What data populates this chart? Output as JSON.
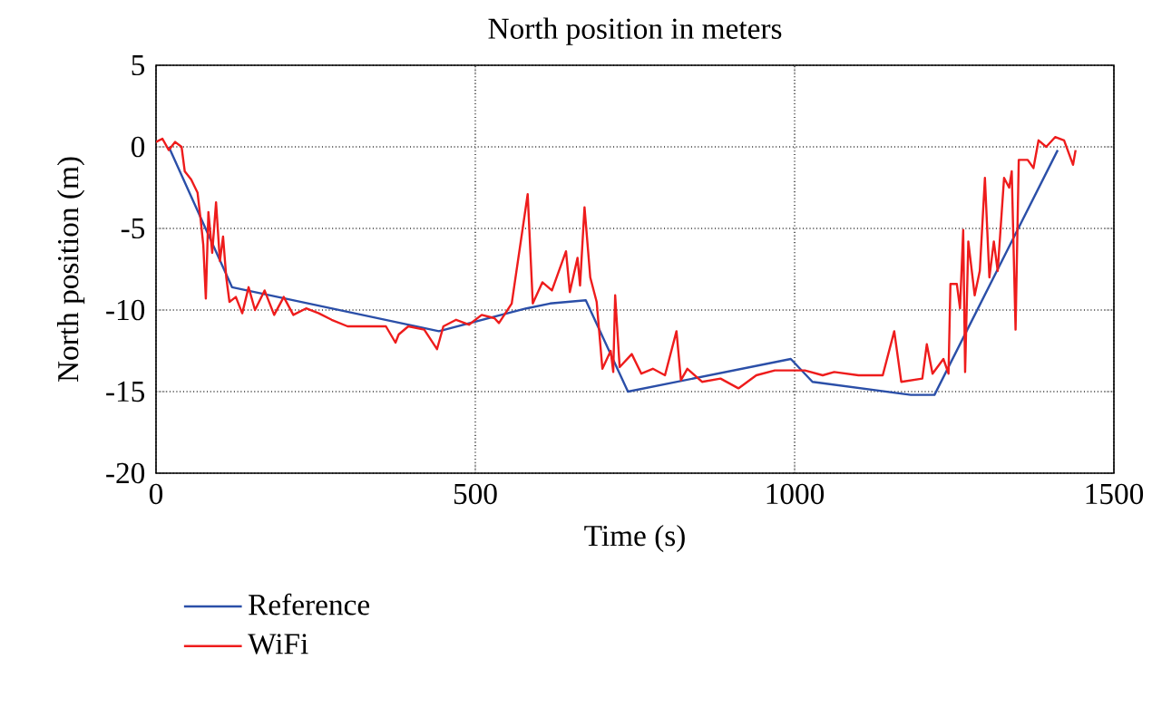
{
  "chart_data": {
    "type": "line",
    "title": "North position in meters",
    "xlabel": "Time (s)",
    "ylabel": "North position (m)",
    "xlim": [
      0,
      1500
    ],
    "ylim": [
      -20,
      5
    ],
    "xticks": [
      0,
      500,
      1000,
      1500
    ],
    "yticks": [
      -20,
      -15,
      -10,
      -5,
      0,
      5
    ],
    "grid": true,
    "legend": "bottom",
    "line_style": "solid",
    "marker": "none",
    "series": [
      {
        "name": "Reference",
        "color": "#2b4fa8",
        "x": [
          20,
          119,
          443,
          580,
          617,
          673,
          739,
          994,
          1028,
          1182,
          1219,
          1412
        ],
        "values": [
          0,
          -8.6,
          -11.3,
          -9.9,
          -9.6,
          -9.4,
          -15,
          -13,
          -14.4,
          -15.2,
          -15.2,
          -0.2
        ]
      },
      {
        "name": "WiFi",
        "color": "#ee1c1c",
        "x": [
          0,
          10,
          20,
          30,
          40,
          45,
          55,
          65,
          70,
          74,
          78,
          82,
          88,
          94,
          100,
          105,
          110,
          115,
          125,
          135,
          145,
          155,
          170,
          185,
          200,
          215,
          235,
          255,
          275,
          300,
          330,
          360,
          375,
          380,
          395,
          420,
          440,
          450,
          470,
          490,
          510,
          530,
          537,
          557,
          582,
          590,
          605,
          620,
          642,
          648,
          660,
          664,
          671,
          680,
          690,
          699,
          712,
          716,
          719,
          726,
          745,
          760,
          778,
          797,
          815,
          822,
          832,
          855,
          884,
          912,
          940,
          969,
          997,
          1016,
          1044,
          1062,
          1100,
          1138,
          1156,
          1167,
          1200,
          1207,
          1216,
          1233,
          1241,
          1244,
          1254,
          1259,
          1264,
          1267,
          1272,
          1282,
          1290,
          1298,
          1305,
          1312,
          1318,
          1328,
          1336,
          1340,
          1346,
          1351,
          1365,
          1374,
          1382,
          1394,
          1408,
          1422,
          1436,
          1440
        ],
        "values": [
          0.3,
          0.5,
          -0.2,
          0.3,
          0,
          -1.5,
          -2,
          -2.8,
          -4.5,
          -6,
          -9.3,
          -4,
          -6.5,
          -3.4,
          -7,
          -5.5,
          -8,
          -9.5,
          -9.2,
          -10.2,
          -8.6,
          -10,
          -8.8,
          -10.3,
          -9.2,
          -10.3,
          -9.9,
          -10.2,
          -10.6,
          -11,
          -11,
          -11,
          -12,
          -11.5,
          -11,
          -11.2,
          -12.4,
          -11,
          -10.6,
          -10.9,
          -10.3,
          -10.5,
          -10.8,
          -9.6,
          -2.9,
          -9.6,
          -8.3,
          -8.8,
          -6.4,
          -8.9,
          -6.8,
          -8.5,
          -3.7,
          -8,
          -9.5,
          -13.6,
          -12.5,
          -13.8,
          -9.1,
          -13.5,
          -12.7,
          -13.9,
          -13.6,
          -14,
          -11.3,
          -14.3,
          -13.6,
          -14.4,
          -14.2,
          -14.8,
          -14,
          -13.7,
          -13.7,
          -13.7,
          -14,
          -13.8,
          -14,
          -14,
          -11.3,
          -14.4,
          -14.2,
          -12.1,
          -13.9,
          -13,
          -13.9,
          -8.4,
          -8.4,
          -9.9,
          -5.1,
          -13.8,
          -5.8,
          -9.1,
          -7.6,
          -1.9,
          -8,
          -5.8,
          -7.6,
          -1.9,
          -2.5,
          -1.5,
          -11.2,
          -0.8,
          -0.8,
          -1.3,
          0.4,
          0,
          0.6,
          0.4,
          -1.1,
          -0.2
        ]
      }
    ]
  }
}
